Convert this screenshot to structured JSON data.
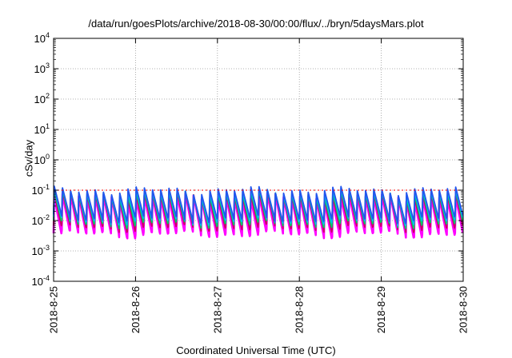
{
  "chart_data": {
    "type": "line",
    "title": "/data/run/goesPlots/archive/2018-08-30/00:00/flux/../bryn/5daysMars.plot",
    "xlabel": "Coordinated Universal Time (UTC)",
    "ylabel": "cSv/day",
    "yscale": "log",
    "ylim": [
      0.0001,
      10000
    ],
    "xlim": [
      "2018-8-25",
      "2018-8-30"
    ],
    "x_ticks": [
      "2018-8-25",
      "2018-8-26",
      "2018-8-27",
      "2018-8-28",
      "2018-8-29",
      "2018-8-30"
    ],
    "y_ticks": [
      {
        "base": "10",
        "exp": "-4"
      },
      {
        "base": "10",
        "exp": "-3"
      },
      {
        "base": "10",
        "exp": "-2"
      },
      {
        "base": "10",
        "exp": "-1"
      },
      {
        "base": "10",
        "exp": "0"
      },
      {
        "base": "10",
        "exp": "1"
      },
      {
        "base": "10",
        "exp": "2"
      },
      {
        "base": "10",
        "exp": "3"
      },
      {
        "base": "10",
        "exp": "4"
      }
    ],
    "grid": true,
    "reference_line": {
      "value": 0.1,
      "color": "#ff0000",
      "style": "dotted"
    },
    "cycles_per_day": 10,
    "series": [
      {
        "color": "#ff00ff",
        "peak": 0.06,
        "trough": 0.0038
      },
      {
        "color": "#cc0066",
        "peak": 0.07,
        "trough": 0.006
      },
      {
        "color": "#00cc66",
        "peak": 0.08,
        "trough": 0.008
      },
      {
        "color": "#00bbee",
        "peak": 0.09,
        "trough": 0.01
      },
      {
        "color": "#2255ee",
        "peak": 0.1,
        "trough": 0.012
      }
    ]
  }
}
